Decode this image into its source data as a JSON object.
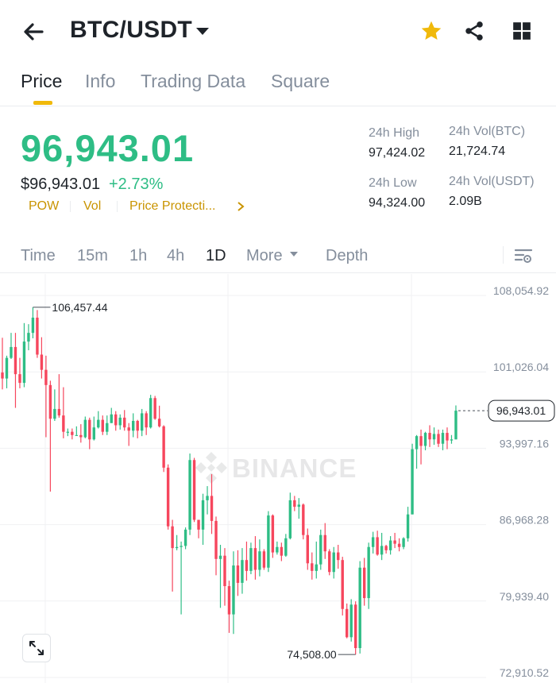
{
  "header": {
    "pair": "BTC/USDT",
    "icons": {
      "back": "arrow-left-icon",
      "caret": "caret-down-icon",
      "favorite": "star-icon",
      "share": "share-icon",
      "grid": "grid-icon"
    },
    "favorite_color": "#f0b90b"
  },
  "tabs": [
    {
      "label": "Price",
      "active": true
    },
    {
      "label": "Info",
      "active": false
    },
    {
      "label": "Trading Data",
      "active": false
    },
    {
      "label": "Square",
      "active": false
    }
  ],
  "ticker": {
    "last_price": "96,943.01",
    "usd_value": "$96,943.01",
    "change_pct": "+2.73%",
    "tags": [
      "POW",
      "Vol",
      "Price Protecti..."
    ],
    "stats": {
      "high_label": "24h High",
      "high_value": "97,424.02",
      "low_label": "24h Low",
      "low_value": "94,324.00",
      "vol_btc_label": "24h Vol(BTC)",
      "vol_btc_value": "21,724.74",
      "vol_usdt_label": "24h Vol(USDT)",
      "vol_usdt_value": "2.09B"
    }
  },
  "intervals": [
    {
      "label": "Time",
      "active": false
    },
    {
      "label": "15m",
      "active": false
    },
    {
      "label": "1h",
      "active": false
    },
    {
      "label": "4h",
      "active": false
    },
    {
      "label": "1D",
      "active": true
    },
    {
      "label": "More",
      "active": false
    },
    {
      "label": "Depth",
      "active": false
    }
  ],
  "colors": {
    "up": "#2ebd85",
    "down": "#f6465d",
    "accent": "#f0b90b",
    "muted": "#848e9c",
    "text": "#1e2329"
  },
  "chart_data": {
    "type": "candlestick",
    "interval": "1D",
    "y_ticks": [
      "108,054.92",
      "101,026.04",
      "93,997.16",
      "86,968.28",
      "79,939.40",
      "72,910.52"
    ],
    "y_tick_values": [
      108054.92,
      101026.04,
      93997.16,
      86968.28,
      79939.4,
      72910.52
    ],
    "ylim": [
      72910.52,
      108054.92
    ],
    "high_marker": "106,457.44",
    "high_value": 106457.44,
    "low_marker": "74,508.00",
    "low_value": 74508.0,
    "current_price_label": "96,943.01",
    "current_price": 96943.01,
    "watermark": "BINANCE",
    "candles": [
      [
        100450,
        99900,
        103650,
        98900
      ],
      [
        99900,
        101800,
        102000,
        99000
      ],
      [
        101800,
        102800,
        104100,
        101700
      ],
      [
        102800,
        100300,
        104100,
        97200
      ],
      [
        100300,
        99500,
        101800,
        99000
      ],
      [
        99500,
        103300,
        105000,
        99100
      ],
      [
        103300,
        104100,
        104900,
        102500
      ],
      [
        104100,
        105500,
        106457.44,
        103600
      ],
      [
        105500,
        102100,
        106200,
        101800
      ],
      [
        102100,
        100700,
        103700,
        99900
      ],
      [
        100700,
        99300,
        102000,
        94500
      ],
      [
        99300,
        96200,
        99700,
        89500
      ],
      [
        96200,
        97100,
        98900,
        96000
      ],
      [
        97100,
        96500,
        100300,
        96300
      ],
      [
        96500,
        95000,
        99100,
        94400
      ],
      [
        95000,
        95000,
        95300,
        94600
      ],
      [
        95000,
        94700,
        95300,
        94300
      ],
      [
        94700,
        94700,
        95500,
        94700
      ],
      [
        94700,
        94500,
        95700,
        94000
      ],
      [
        94500,
        96100,
        96400,
        94400
      ],
      [
        96100,
        94300,
        96300,
        93400
      ],
      [
        94300,
        95400,
        96400,
        94200
      ],
      [
        95400,
        96100,
        96900,
        95300
      ],
      [
        96100,
        95000,
        96500,
        94700
      ],
      [
        95000,
        95800,
        96500,
        94700
      ],
      [
        95800,
        96600,
        97200,
        95800
      ],
      [
        96600,
        95600,
        96900,
        95100
      ],
      [
        95600,
        96300,
        96600,
        95200
      ],
      [
        96300,
        95400,
        97000,
        95100
      ],
      [
        95400,
        95100,
        95800,
        93700
      ],
      [
        95100,
        96000,
        96700,
        94500
      ],
      [
        96000,
        95100,
        96100,
        94400
      ],
      [
        95100,
        96700,
        97100,
        94600
      ],
      [
        96700,
        95400,
        96900,
        94700
      ],
      [
        95400,
        98100,
        98400,
        95300
      ],
      [
        98100,
        96200,
        98300,
        96100
      ],
      [
        96200,
        95500,
        97400,
        95400
      ],
      [
        95500,
        91700,
        95600,
        91300
      ],
      [
        91700,
        86300,
        92000,
        86000
      ],
      [
        86300,
        84300,
        86900,
        80300
      ],
      [
        84300,
        84400,
        85500,
        84100
      ],
      [
        84400,
        84500,
        84900,
        78200
      ],
      [
        84500,
        86000,
        86200,
        84200
      ],
      [
        86000,
        92400,
        93000,
        85500
      ],
      [
        92400,
        86900,
        92600,
        86700
      ],
      [
        86900,
        86000,
        86400,
        85200
      ],
      [
        86000,
        88700,
        89300,
        84600
      ],
      [
        88700,
        89100,
        90000,
        87400
      ],
      [
        89100,
        86800,
        91100,
        85600
      ],
      [
        86800,
        83300,
        87200,
        81800
      ],
      [
        83300,
        83600,
        84600,
        78800
      ],
      [
        83600,
        80800,
        84300,
        79000
      ],
      [
        80800,
        78200,
        81300,
        76500
      ],
      [
        78200,
        82700,
        84000,
        76400
      ],
      [
        82700,
        81100,
        84100,
        79900
      ],
      [
        81100,
        83200,
        84300,
        80100
      ],
      [
        83200,
        82200,
        84900,
        81300
      ],
      [
        82200,
        84300,
        84800,
        81900
      ],
      [
        84300,
        82300,
        85400,
        81400
      ],
      [
        82300,
        84000,
        85100,
        81700
      ],
      [
        84000,
        82500,
        84200,
        82300
      ],
      [
        82500,
        87300,
        87700,
        82100
      ],
      [
        87300,
        83900,
        87400,
        83400
      ],
      [
        83900,
        84400,
        84900,
        83700
      ],
      [
        84400,
        83600,
        84800,
        83100
      ],
      [
        83600,
        85200,
        85600,
        83500
      ],
      [
        85200,
        88700,
        89400,
        85100
      ],
      [
        88700,
        88100,
        89100,
        87700
      ],
      [
        88100,
        88300,
        88900,
        87000
      ],
      [
        88300,
        85500,
        88400,
        85100
      ],
      [
        85500,
        82900,
        86100,
        82300
      ],
      [
        82900,
        82200,
        83900,
        81400
      ],
      [
        82200,
        82800,
        84900,
        81500
      ],
      [
        82800,
        85500,
        86000,
        82300
      ],
      [
        85500,
        84000,
        86600,
        83300
      ],
      [
        84000,
        82100,
        84200,
        81800
      ],
      [
        82100,
        83900,
        84400,
        81500
      ],
      [
        83900,
        83200,
        84600,
        82400
      ],
      [
        83200,
        78700,
        83500,
        78100
      ],
      [
        78700,
        76100,
        79200,
        76000
      ],
      [
        76100,
        79100,
        79600,
        75700
      ],
      [
        79100,
        75100,
        79400,
        74508
      ],
      [
        75100,
        82500,
        83100,
        74600
      ],
      [
        82500,
        79700,
        83400,
        79000
      ],
      [
        79700,
        84400,
        84800,
        78700
      ],
      [
        84400,
        85300,
        85800,
        83800
      ],
      [
        85300,
        83700,
        85900,
        83600
      ],
      [
        83700,
        84500,
        85700,
        83200
      ],
      [
        84500,
        84100,
        84600,
        83800
      ],
      [
        84100,
        85000,
        85400,
        83700
      ],
      [
        85000,
        84700,
        85700,
        84300
      ],
      [
        84700,
        84400,
        85200,
        84000
      ],
      [
        84400,
        85200,
        85300,
        84200
      ],
      [
        85200,
        87400,
        88100,
        84900
      ],
      [
        87400,
        93400,
        93900,
        87400
      ],
      [
        93400,
        94600,
        94700,
        91600
      ],
      [
        94600,
        93700,
        95200,
        92000
      ],
      [
        93700,
        94900,
        95000,
        93300
      ],
      [
        94900,
        94300,
        95600,
        93600
      ],
      [
        94300,
        94800,
        95400,
        93800
      ],
      [
        94800,
        93900,
        95200,
        93600
      ],
      [
        93900,
        94900,
        95200,
        93300
      ],
      [
        94900,
        94200,
        95400,
        93400
      ],
      [
        94200,
        94300,
        94700,
        93900
      ],
      [
        94300,
        96943.01,
        97424.02,
        94300
      ]
    ]
  },
  "expand_icon": "expand-arrows-icon"
}
